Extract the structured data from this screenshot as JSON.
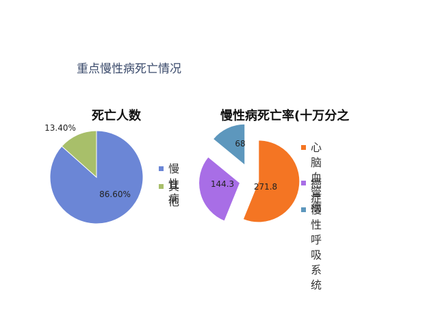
{
  "page_title": "重点慢性病死亡情况",
  "chart_data": [
    {
      "type": "pie",
      "title": "死亡人数",
      "categories": [
        "慢性病",
        "其他"
      ],
      "values": [
        86.6,
        13.4
      ],
      "data_labels": [
        "86.60%",
        "13.40%"
      ],
      "colors": [
        "#6b86d6",
        "#a8bf6a"
      ],
      "legend": {
        "position": "right",
        "entries": [
          "慢性病",
          "其他"
        ]
      }
    },
    {
      "type": "pie",
      "title": "慢性病死亡率(十万分之",
      "categories": [
        "心脑血管病",
        "癌症",
        "慢性呼吸系统"
      ],
      "values": [
        271.8,
        144.3,
        68
      ],
      "data_labels": [
        "271.8",
        "144.3",
        "68"
      ],
      "colors": [
        "#f47523",
        "#a86ee6",
        "#5d97bd"
      ],
      "exploded": true,
      "legend": {
        "position": "right",
        "entries": [
          "心脑血\n管病",
          "癌症",
          "慢性呼\n吸系统"
        ]
      }
    }
  ]
}
